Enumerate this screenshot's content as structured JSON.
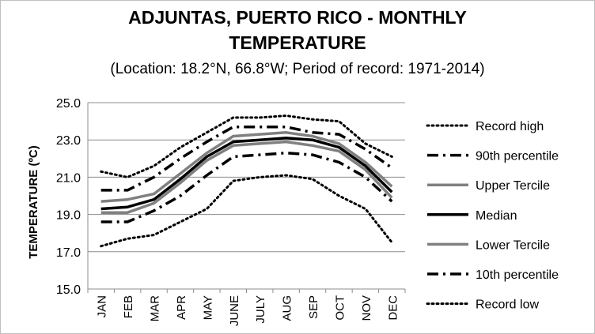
{
  "chart_data": {
    "type": "line",
    "title_line1": "ADJUNTAS, PUERTO RICO - MONTHLY",
    "title_line2": "TEMPERATURE",
    "subtitle": "(Location: 18.2°N, 66.8°W; Period of record: 1971-2014)",
    "ylabel": "TEMPERATURE (ºC)",
    "xlabel": "",
    "ylim": [
      15.0,
      25.0
    ],
    "yticks": [
      "15.0",
      "17.0",
      "19.0",
      "21.0",
      "23.0",
      "25.0"
    ],
    "categories": [
      "JAN",
      "FEB",
      "MAR",
      "APR",
      "MAY",
      "JUNE",
      "JULY",
      "AUG",
      "SEP",
      "OCT",
      "NOV",
      "DEC"
    ],
    "grid": true,
    "legend_position": "right",
    "series": [
      {
        "name": "Record high",
        "style": "dotted",
        "color": "#000000",
        "values": [
          21.3,
          21.0,
          21.6,
          22.6,
          23.4,
          24.2,
          24.2,
          24.3,
          24.1,
          24.0,
          22.8,
          22.1
        ]
      },
      {
        "name": "90th percentile",
        "style": "dashdot",
        "color": "#000000",
        "values": [
          20.3,
          20.3,
          21.0,
          22.0,
          22.9,
          23.7,
          23.7,
          23.7,
          23.4,
          23.3,
          22.5,
          21.5
        ]
      },
      {
        "name": "Upper Tercile",
        "style": "solid",
        "color": "#808080",
        "values": [
          19.7,
          19.8,
          20.1,
          21.2,
          22.3,
          23.2,
          23.3,
          23.4,
          23.2,
          22.8,
          21.8,
          20.5
        ]
      },
      {
        "name": "Median",
        "style": "solid",
        "color": "#000000",
        "values": [
          19.3,
          19.4,
          19.8,
          20.9,
          22.1,
          22.9,
          23.0,
          23.1,
          23.0,
          22.6,
          21.6,
          20.2
        ]
      },
      {
        "name": "Lower Tercile",
        "style": "solid",
        "color": "#808080",
        "values": [
          19.1,
          19.1,
          19.6,
          20.7,
          21.9,
          22.7,
          22.8,
          22.9,
          22.7,
          22.4,
          21.4,
          19.9
        ]
      },
      {
        "name": "10th percentile",
        "style": "dashdot",
        "color": "#000000",
        "values": [
          18.6,
          18.6,
          19.2,
          20.0,
          21.1,
          22.1,
          22.2,
          22.3,
          22.2,
          21.8,
          21.0,
          19.7
        ]
      },
      {
        "name": "Record low",
        "style": "dotted",
        "color": "#000000",
        "values": [
          17.3,
          17.7,
          17.9,
          18.6,
          19.3,
          20.8,
          21.0,
          21.1,
          20.9,
          20.0,
          19.3,
          17.5
        ]
      }
    ]
  }
}
